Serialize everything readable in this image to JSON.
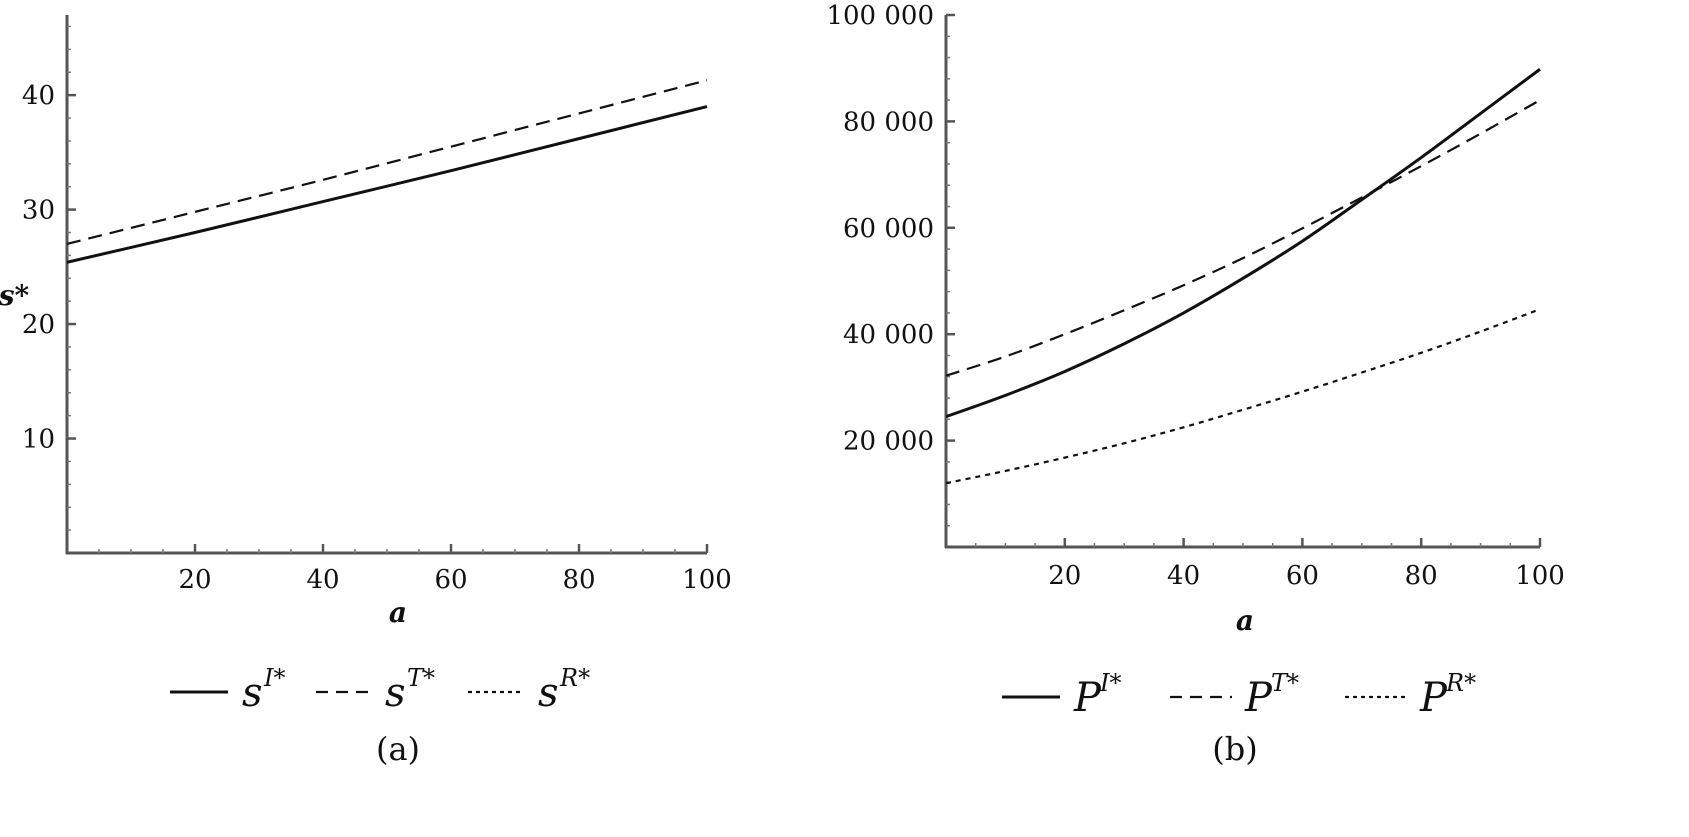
{
  "chart_data": [
    {
      "panel": "(a)",
      "type": "line",
      "title": "",
      "xlabel": "a",
      "ylabel": "s*",
      "xlim": [
        0,
        100
      ],
      "ylim": [
        0,
        47
      ],
      "xticks": [
        20,
        40,
        60,
        80,
        100
      ],
      "yticks": [
        10,
        20,
        30,
        40
      ],
      "xtick_labels": [
        "20",
        "40",
        "60",
        "80",
        "100"
      ],
      "ytick_labels": [
        "10",
        "20",
        "30",
        "40"
      ],
      "grid": false,
      "legend_position": "bottom",
      "series": [
        {
          "name": "s",
          "sup": "I*",
          "style": "solid",
          "x": [
            0,
            20,
            40,
            60,
            80,
            100
          ],
          "y": [
            25.4,
            28.0,
            30.7,
            33.4,
            36.2,
            39.0
          ]
        },
        {
          "name": "s",
          "sup": "T*",
          "style": "dashed",
          "x": [
            0,
            20,
            40,
            60,
            80,
            100
          ],
          "y": [
            27.0,
            29.8,
            32.6,
            35.5,
            38.4,
            41.3
          ]
        },
        {
          "name": "s",
          "sup": "R*",
          "style": "dotted",
          "x": [],
          "y": []
        }
      ]
    },
    {
      "panel": "(b)",
      "type": "line",
      "title": "",
      "xlabel": "a",
      "ylabel": "",
      "xlim": [
        0,
        100
      ],
      "ylim": [
        0,
        100000
      ],
      "xticks": [
        20,
        40,
        60,
        80,
        100
      ],
      "yticks": [
        20000,
        40000,
        60000,
        80000,
        100000
      ],
      "xtick_labels": [
        "20",
        "40",
        "60",
        "80",
        "100"
      ],
      "ytick_labels": [
        "20 000",
        "40 000",
        "60 000",
        "80 000",
        "100 000"
      ],
      "grid": false,
      "legend_position": "bottom",
      "series": [
        {
          "name": "P",
          "sup": "I*",
          "style": "solid",
          "x": [
            0,
            10,
            20,
            30,
            40,
            50,
            60,
            70,
            80,
            90,
            100
          ],
          "y": [
            24500,
            28500,
            33000,
            38200,
            44000,
            50500,
            57500,
            65300,
            73200,
            81500,
            89800
          ]
        },
        {
          "name": "P",
          "sup": "T*",
          "style": "dashed",
          "x": [
            0,
            10,
            20,
            30,
            40,
            50,
            60,
            70,
            80,
            90,
            100
          ],
          "y": [
            32200,
            35800,
            40000,
            44500,
            49200,
            54300,
            59900,
            65700,
            71600,
            77700,
            84000
          ]
        },
        {
          "name": "P",
          "sup": "R*",
          "style": "dotted",
          "x": [
            0,
            10,
            20,
            30,
            40,
            50,
            60,
            70,
            80,
            90,
            100
          ],
          "y": [
            12000,
            14300,
            16800,
            19500,
            22500,
            25800,
            29200,
            32800,
            36500,
            40500,
            44700
          ]
        }
      ]
    }
  ]
}
